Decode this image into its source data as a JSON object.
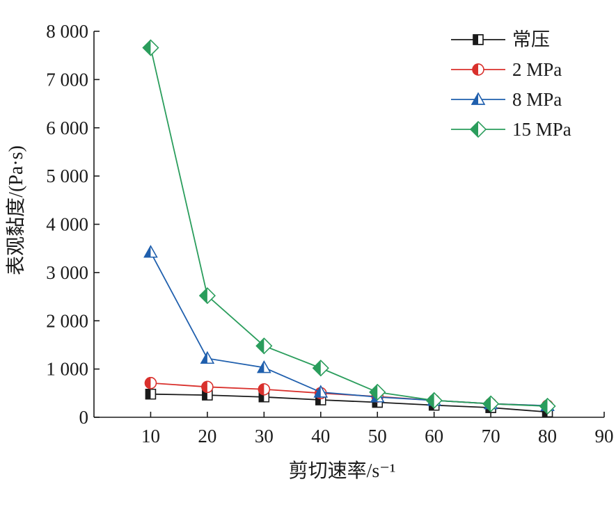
{
  "chart_data": {
    "type": "line",
    "xlabel": "剪切速率/s⁻¹",
    "ylabel": "表观黏度/(Pa·s)",
    "x": [
      10,
      20,
      30,
      40,
      50,
      60,
      70,
      80
    ],
    "xlim": [
      0,
      90
    ],
    "ylim": [
      0,
      8000
    ],
    "xticks": [
      10,
      20,
      30,
      40,
      50,
      60,
      70,
      80,
      90
    ],
    "xtick_labels": [
      "10",
      "20",
      "30",
      "40",
      "50",
      "60",
      "70",
      "80",
      "90"
    ],
    "yticks": [
      0,
      1000,
      2000,
      3000,
      4000,
      5000,
      6000,
      7000,
      8000
    ],
    "ytick_labels": [
      "0",
      "1 000",
      "2 000",
      "3 000",
      "4 000",
      "5 000",
      "6 000",
      "7 000",
      "8 000"
    ],
    "grid": false,
    "legend_position": "top-right",
    "series": [
      {
        "name": "常压",
        "color": "#1a1a1a",
        "marker": "square-half",
        "values": [
          480,
          460,
          420,
          360,
          310,
          250,
          200,
          110
        ]
      },
      {
        "name": "2 MPa",
        "color": "#d9302c",
        "marker": "circle-half",
        "values": [
          710,
          630,
          580,
          500,
          430,
          350,
          280,
          240
        ]
      },
      {
        "name": "8 MPa",
        "color": "#1f5fad",
        "marker": "triangle-half",
        "values": [
          3420,
          1220,
          1030,
          520,
          420,
          350,
          280,
          240
        ]
      },
      {
        "name": "15 MPa",
        "color": "#2a9d5c",
        "marker": "diamond-half",
        "values": [
          7660,
          2520,
          1480,
          1020,
          520,
          350,
          280,
          230
        ]
      }
    ]
  }
}
